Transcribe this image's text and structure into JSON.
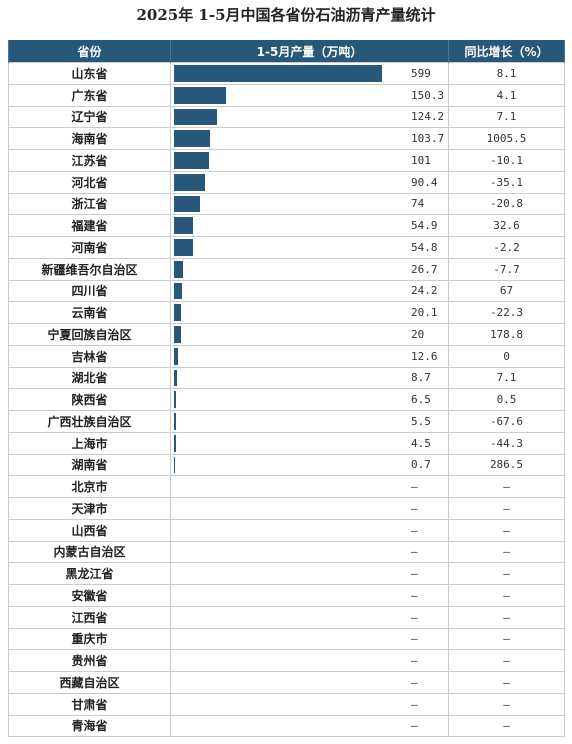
{
  "title": "2025年 1-5月中国各省份石油沥青产量统计",
  "headers": {
    "province": "省份",
    "output": "1-5月产量（万吨）",
    "growth": "同比增长（%）"
  },
  "chart_data": {
    "type": "table",
    "rows": [
      {
        "province": "山东省",
        "output": 599,
        "output_text": "599",
        "growth": "8.1"
      },
      {
        "province": "广东省",
        "output": 150.3,
        "output_text": "150.3",
        "growth": "4.1"
      },
      {
        "province": "辽宁省",
        "output": 124.2,
        "output_text": "124.2",
        "growth": "7.1"
      },
      {
        "province": "海南省",
        "output": 103.7,
        "output_text": "103.7",
        "growth": "1005.5"
      },
      {
        "province": "江苏省",
        "output": 101,
        "output_text": "101",
        "growth": "-10.1"
      },
      {
        "province": "河北省",
        "output": 90.4,
        "output_text": "90.4",
        "growth": "-35.1"
      },
      {
        "province": "浙江省",
        "output": 74,
        "output_text": "74",
        "growth": "-20.8"
      },
      {
        "province": "福建省",
        "output": 54.9,
        "output_text": "54.9",
        "growth": "32.6"
      },
      {
        "province": "河南省",
        "output": 54.8,
        "output_text": "54.8",
        "growth": "-2.2"
      },
      {
        "province": "新疆维吾尔自治区",
        "output": 26.7,
        "output_text": "26.7",
        "growth": "-7.7"
      },
      {
        "province": "四川省",
        "output": 24.2,
        "output_text": "24.2",
        "growth": "67"
      },
      {
        "province": "云南省",
        "output": 20.1,
        "output_text": "20.1",
        "growth": "-22.3"
      },
      {
        "province": "宁夏回族自治区",
        "output": 20,
        "output_text": "20",
        "growth": "178.8"
      },
      {
        "province": "吉林省",
        "output": 12.6,
        "output_text": "12.6",
        "growth": "0"
      },
      {
        "province": "湖北省",
        "output": 8.7,
        "output_text": "8.7",
        "growth": "7.1"
      },
      {
        "province": "陕西省",
        "output": 6.5,
        "output_text": "6.5",
        "growth": "0.5"
      },
      {
        "province": "广西壮族自治区",
        "output": 5.5,
        "output_text": "5.5",
        "growth": "-67.6"
      },
      {
        "province": "上海市",
        "output": 4.5,
        "output_text": "4.5",
        "growth": "-44.3"
      },
      {
        "province": "湖南省",
        "output": 0.7,
        "output_text": "0.7",
        "growth": "286.5"
      },
      {
        "province": "北京市",
        "output": null,
        "output_text": "–",
        "growth": "–"
      },
      {
        "province": "天津市",
        "output": null,
        "output_text": "–",
        "growth": "–"
      },
      {
        "province": "山西省",
        "output": null,
        "output_text": "–",
        "growth": "–"
      },
      {
        "province": "内蒙古自治区",
        "output": null,
        "output_text": "–",
        "growth": "–"
      },
      {
        "province": "黑龙江省",
        "output": null,
        "output_text": "–",
        "growth": "–"
      },
      {
        "province": "安徽省",
        "output": null,
        "output_text": "–",
        "growth": "–"
      },
      {
        "province": "江西省",
        "output": null,
        "output_text": "–",
        "growth": "–"
      },
      {
        "province": "重庆市",
        "output": null,
        "output_text": "–",
        "growth": "–"
      },
      {
        "province": "贵州省",
        "output": null,
        "output_text": "–",
        "growth": "–"
      },
      {
        "province": "西藏自治区",
        "output": null,
        "output_text": "–",
        "growth": "–"
      },
      {
        "province": "甘肃省",
        "output": null,
        "output_text": "–",
        "growth": "–"
      },
      {
        "province": "青海省",
        "output": null,
        "output_text": "–",
        "growth": "–"
      }
    ]
  },
  "colors": {
    "header_bg": "#27587a",
    "bar": "#27587a",
    "header_text": "#ffffff"
  }
}
